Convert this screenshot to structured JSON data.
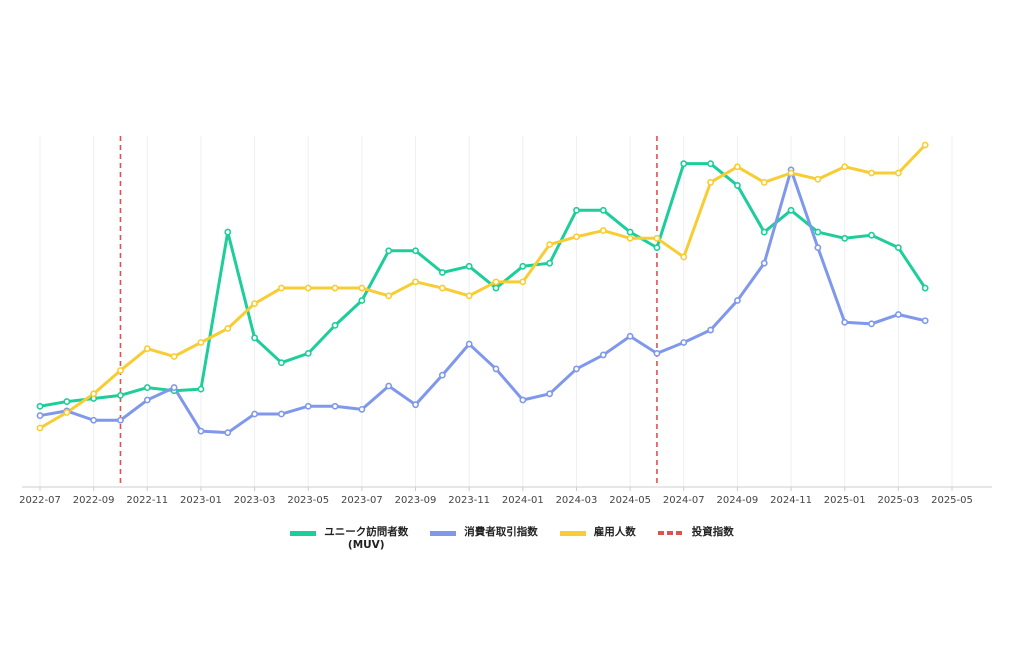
{
  "chart_data": {
    "type": "line",
    "x_ticks": [
      "2022-07",
      "2022-09",
      "2022-11",
      "2023-01",
      "2023-03",
      "2023-05",
      "2023-07",
      "2023-09",
      "2023-11",
      "2024-01",
      "2024-03",
      "2024-05",
      "2024-07",
      "2024-09",
      "2024-11",
      "2025-01",
      "2025-03",
      "2025-05"
    ],
    "x": [
      "2022-07",
      "2022-08",
      "2022-09",
      "2022-10",
      "2022-11",
      "2022-12",
      "2023-01",
      "2023-02",
      "2023-03",
      "2023-04",
      "2023-05",
      "2023-06",
      "2023-07",
      "2023-08",
      "2023-09",
      "2023-10",
      "2023-11",
      "2023-12",
      "2024-01",
      "2024-02",
      "2024-03",
      "2024-04",
      "2024-05",
      "2024-06",
      "2024-07",
      "2024-08",
      "2024-09",
      "2024-10",
      "2024-11",
      "2024-12",
      "2025-01",
      "2025-02",
      "2025-03",
      "2025-04"
    ],
    "xlim": [
      "2022-07",
      "2025-05"
    ],
    "ylim": [
      0,
      100
    ],
    "grid": "vertical",
    "legend_position": "bottom-center",
    "series": [
      {
        "name": "ユニーク訪問者数\n(MUV)",
        "color": "#1dce9a",
        "values": [
          16,
          17.5,
          18.5,
          19.5,
          22,
          21,
          21.5,
          72,
          38,
          30,
          33,
          42,
          50,
          66,
          66,
          59,
          61,
          54,
          61,
          62,
          79,
          79,
          72,
          67,
          94,
          94,
          87,
          72,
          79,
          72,
          70,
          71,
          67,
          54
        ]
      },
      {
        "name": "消費者取引指数",
        "color": "#7f98ec",
        "values": [
          13,
          14.5,
          11.5,
          11.5,
          18,
          22,
          8,
          7.5,
          13.5,
          13.5,
          16,
          16,
          15,
          22.5,
          16.5,
          26,
          36,
          28,
          18,
          20,
          28,
          32.5,
          38.5,
          33,
          36.5,
          40.5,
          50,
          62,
          92,
          67,
          43,
          42.5,
          45.5,
          43.5
        ]
      },
      {
        "name": "雇用人数",
        "color": "#f7cd33",
        "values": [
          9,
          14,
          20,
          27.5,
          34.5,
          32,
          36.5,
          41,
          49,
          54,
          54,
          54,
          54,
          51.5,
          56,
          54,
          51.5,
          56,
          56,
          68,
          70.5,
          72.5,
          70,
          70,
          64,
          88,
          93,
          88,
          91,
          89,
          93,
          91,
          91,
          100
        ]
      }
    ],
    "events": [
      {
        "name": "投資指数",
        "x": "2022-10",
        "color": "#e05252",
        "style": "dashed"
      },
      {
        "name": "投資指数",
        "x": "2024-06",
        "color": "#e05252",
        "style": "dashed"
      }
    ]
  },
  "legend": [
    {
      "label": "ユニーク訪問者数",
      "sublabel": "(MUV)",
      "color": "#1dce9a",
      "dashed": false
    },
    {
      "label": "消費者取引指数",
      "sublabel": "",
      "color": "#7f98ec",
      "dashed": false
    },
    {
      "label": "雇用人数",
      "sublabel": "",
      "color": "#f7cd33",
      "dashed": false
    },
    {
      "label": "投資指数",
      "sublabel": "",
      "color": "#e05252",
      "dashed": true
    }
  ]
}
